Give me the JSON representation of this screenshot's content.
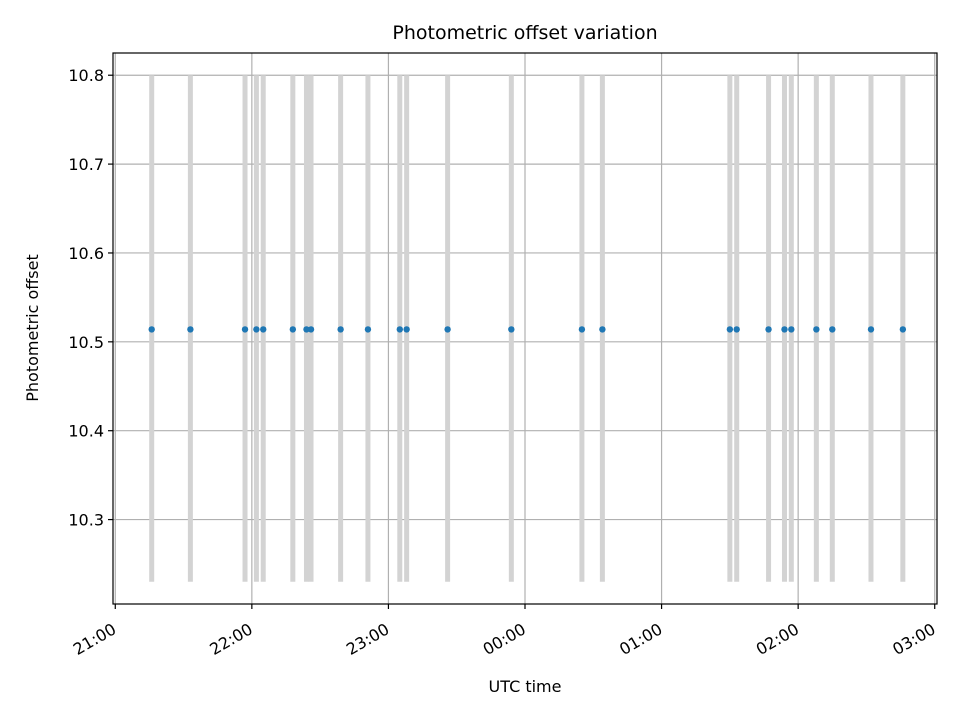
{
  "chart_data": {
    "type": "scatter",
    "title": "Photometric offset variation",
    "xlabel": "UTC time",
    "ylabel": "Photometric offset",
    "grid": true,
    "legend": "none",
    "xlim": [
      "20:59",
      "03:01"
    ],
    "ylim": [
      10.205,
      10.825
    ],
    "x_ticks": [
      "21:00",
      "22:00",
      "23:00",
      "00:00",
      "01:00",
      "02:00",
      "03:00"
    ],
    "y_ticks": [
      "10.3",
      "10.4",
      "10.5",
      "10.6",
      "10.7",
      "10.8"
    ],
    "y_tick_values": [
      10.3,
      10.4,
      10.5,
      10.6,
      10.7,
      10.8
    ],
    "errorbar_range": [
      10.23,
      10.8
    ],
    "series": [
      {
        "x": [
          "21:16",
          "21:33",
          "21:57",
          "22:02",
          "22:05",
          "22:18",
          "22:24",
          "22:26",
          "22:39",
          "22:51",
          "23:05",
          "23:08",
          "23:26",
          "23:54",
          "00:25",
          "00:34",
          "01:30",
          "01:33",
          "01:47",
          "01:54",
          "01:57",
          "02:08",
          "02:15",
          "02:32",
          "02:46"
        ],
        "y": [
          10.514,
          10.514,
          10.514,
          10.514,
          10.514,
          10.514,
          10.514,
          10.514,
          10.514,
          10.514,
          10.514,
          10.514,
          10.514,
          10.514,
          10.514,
          10.514,
          10.514,
          10.514,
          10.514,
          10.514,
          10.514,
          10.514,
          10.514,
          10.514,
          10.514
        ]
      }
    ],
    "colors": {
      "points": "#1f77b4",
      "errorbars": "#d3d3d3",
      "grid": "#b0b0b0"
    }
  }
}
